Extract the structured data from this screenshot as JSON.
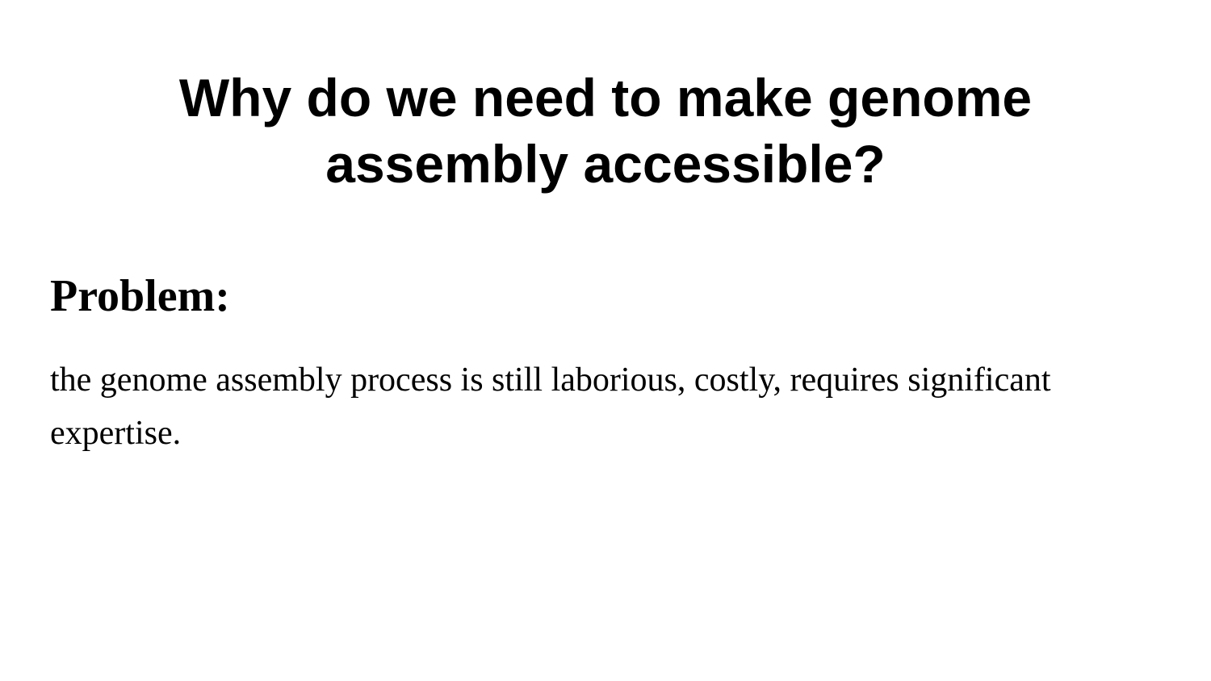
{
  "slide": {
    "title": "Why do we need to make genome assembly accessible?",
    "section_heading": "Problem:",
    "body": "the genome assembly process is still laborious, costly, requires significant expertise."
  }
}
